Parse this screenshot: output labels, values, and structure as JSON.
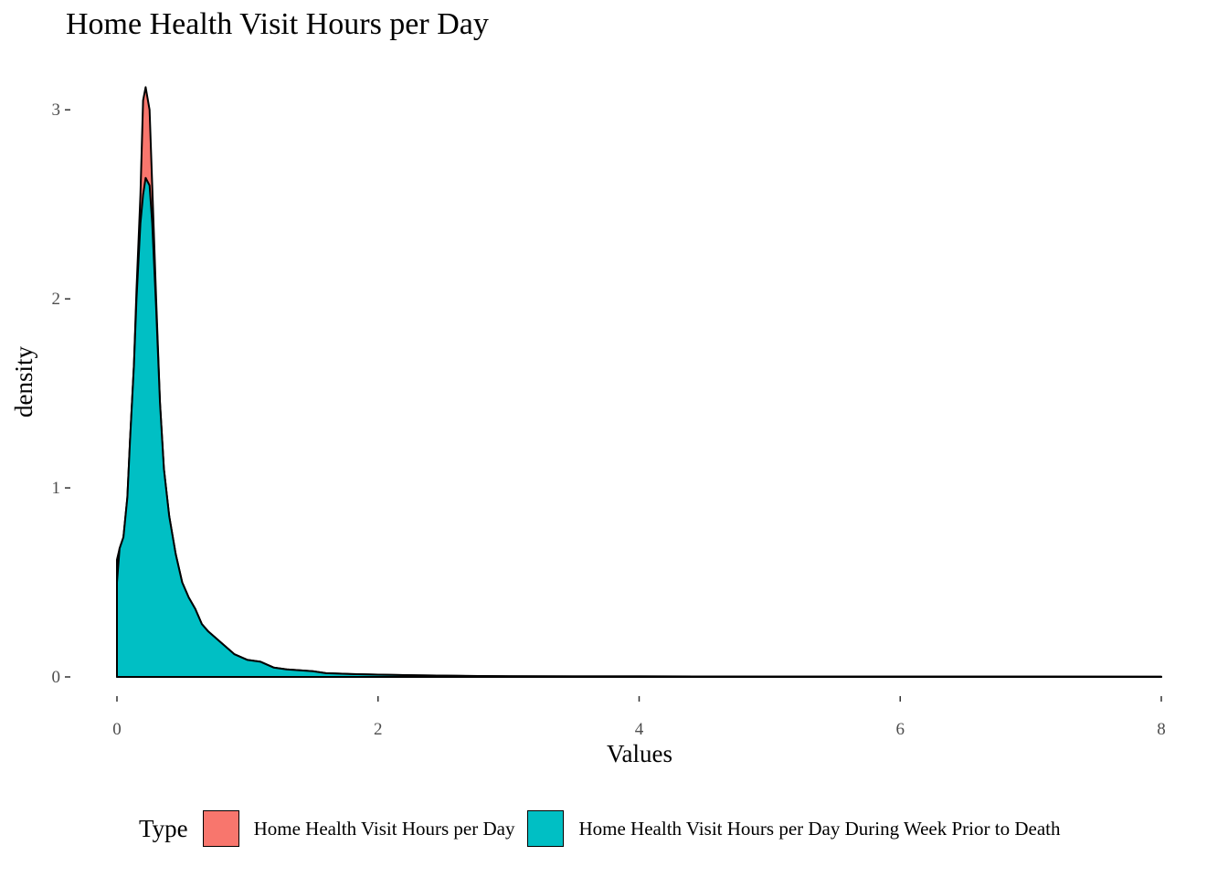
{
  "chart_data": {
    "type": "area",
    "title": "Home Health Visit Hours per Day",
    "xlabel": "Values",
    "ylabel": "density",
    "xlim": [
      0,
      8
    ],
    "ylim": [
      0,
      3.15
    ],
    "x_ticks": [
      "0",
      "2",
      "4",
      "6",
      "8"
    ],
    "y_ticks": [
      "0",
      "1",
      "2",
      "3"
    ],
    "grid": false,
    "legend": {
      "title": "Type",
      "position": "bottom",
      "entries": [
        "Home Health Visit Hours per Day",
        "Home Health Visit Hours per Day During Week Prior to Death"
      ]
    },
    "colors": [
      "#F8766D",
      "#00BFC4"
    ],
    "series": [
      {
        "name": "Home Health Visit Hours per Day",
        "x": [
          0,
          0.02,
          0.05,
          0.08,
          0.1,
          0.13,
          0.15,
          0.18,
          0.2,
          0.22,
          0.25,
          0.27,
          0.3,
          0.33,
          0.36,
          0.4,
          0.45,
          0.5,
          0.55,
          0.6,
          0.65,
          0.7,
          0.8,
          0.9,
          1.0,
          1.1,
          1.2,
          1.3,
          1.4,
          1.5,
          1.6,
          1.8,
          2.0,
          2.3,
          2.6,
          3.0,
          3.5,
          4.0,
          5.0,
          6.0,
          7.0,
          8.0
        ],
        "y": [
          0.62,
          0.68,
          0.74,
          0.95,
          1.25,
          1.65,
          2.05,
          2.55,
          3.05,
          3.12,
          3.0,
          2.6,
          2.0,
          1.45,
          1.1,
          0.85,
          0.65,
          0.5,
          0.42,
          0.36,
          0.28,
          0.24,
          0.18,
          0.12,
          0.09,
          0.08,
          0.05,
          0.04,
          0.035,
          0.03,
          0.02,
          0.015,
          0.012,
          0.008,
          0.006,
          0.004,
          0.003,
          0.003,
          0.002,
          0.002,
          0.002,
          0.001
        ]
      },
      {
        "name": "Home Health Visit Hours per Day During Week Prior to Death",
        "x": [
          0,
          0.02,
          0.05,
          0.08,
          0.1,
          0.13,
          0.15,
          0.18,
          0.2,
          0.22,
          0.25,
          0.27,
          0.3,
          0.33,
          0.36,
          0.4,
          0.45,
          0.5,
          0.55,
          0.6,
          0.65,
          0.7,
          0.8,
          0.9,
          1.0,
          1.1,
          1.2,
          1.3,
          1.4,
          1.5,
          1.6,
          1.8,
          2.0,
          2.3,
          2.6,
          3.0,
          3.5,
          4.0,
          5.0,
          6.0,
          7.0,
          8.0
        ],
        "y": [
          0.5,
          0.68,
          0.74,
          0.95,
          1.25,
          1.65,
          2.0,
          2.4,
          2.55,
          2.64,
          2.6,
          2.4,
          1.95,
          1.45,
          1.1,
          0.85,
          0.65,
          0.5,
          0.42,
          0.36,
          0.28,
          0.24,
          0.18,
          0.12,
          0.09,
          0.08,
          0.05,
          0.04,
          0.035,
          0.03,
          0.02,
          0.015,
          0.012,
          0.008,
          0.006,
          0.004,
          0.003,
          0.003,
          0.002,
          0.002,
          0.002,
          0.001
        ]
      }
    ]
  }
}
